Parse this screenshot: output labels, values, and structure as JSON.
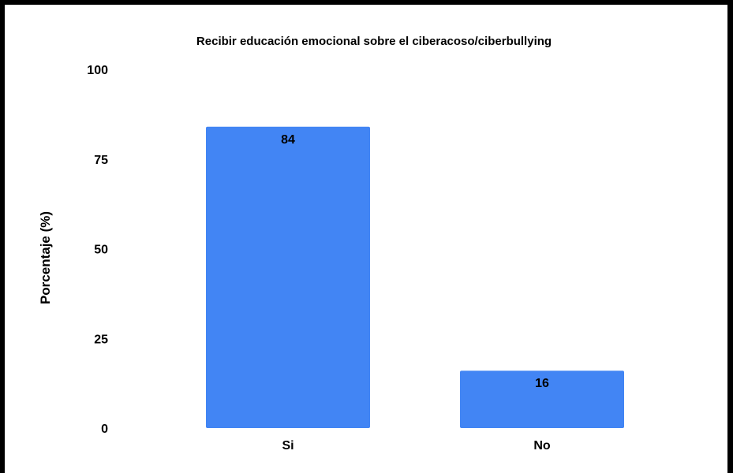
{
  "chart_data": {
    "type": "bar",
    "title": "Recibir educación emocional sobre el ciberacoso/ciberbullying",
    "xlabel": "",
    "ylabel": "Porcentaje (%)",
    "categories": [
      "Si",
      "No"
    ],
    "values": [
      84,
      16
    ],
    "data_labels": [
      "84",
      "16"
    ],
    "ylim": [
      0,
      100
    ],
    "yticks": [
      "0",
      "25",
      "50",
      "75",
      "100"
    ],
    "grid": false,
    "legend": "none",
    "bar_color": "#4285f4"
  }
}
